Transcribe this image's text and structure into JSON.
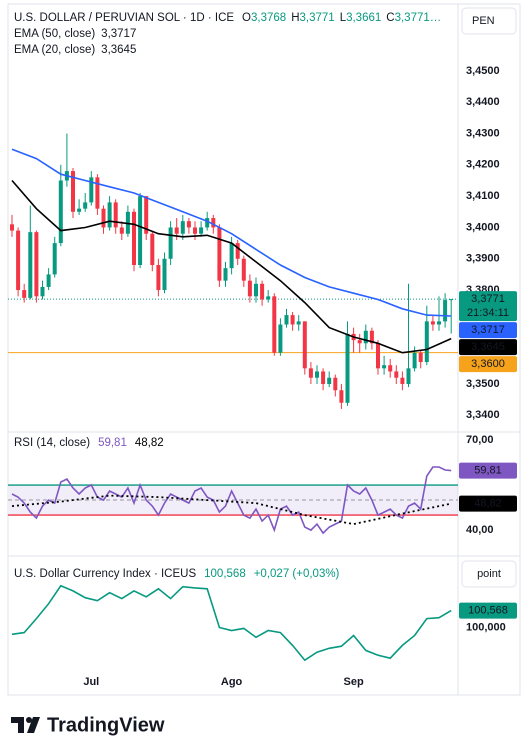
{
  "chart_data": [
    {
      "type": "candlestick",
      "title": "U.S. DOLLAR / PERUVIAN SOL · 1D · ICE",
      "ohlc_legend": [
        {
          "key": "O",
          "text": "3,3768"
        },
        {
          "key": "H",
          "text": "3,3771"
        },
        {
          "key": "L",
          "text": "3,3661"
        },
        {
          "key": "C",
          "text": "3,3771…"
        }
      ],
      "currency": "PEN",
      "up_color": "#089981",
      "down_color": "#f23645",
      "categories": [
        null,
        null,
        null,
        null,
        null,
        null,
        null,
        null,
        null,
        null,
        null,
        null,
        null,
        "Jul",
        null,
        null,
        null,
        null,
        null,
        null,
        null,
        null,
        null,
        null,
        null,
        null,
        null,
        null,
        null,
        null,
        null,
        null,
        null,
        null,
        null,
        null,
        "Ago",
        null,
        null,
        null,
        null,
        null,
        null,
        null,
        null,
        null,
        null,
        null,
        null,
        null,
        null,
        null,
        null,
        null,
        null,
        null,
        "Sep",
        null,
        null,
        null,
        null,
        null,
        null,
        null,
        null,
        null,
        null,
        null,
        null,
        null,
        null,
        null,
        null
      ],
      "open": [
        3.401,
        3.399,
        3.38,
        3.3775,
        3.3985,
        3.378,
        3.381,
        3.385,
        3.395,
        3.415,
        3.418,
        3.405,
        3.406,
        3.408,
        3.416,
        3.406,
        3.4,
        3.408,
        3.4,
        3.398,
        3.405,
        3.388,
        3.41,
        3.398,
        3.388,
        3.38,
        3.39,
        3.4,
        3.398,
        3.402,
        3.4,
        3.398,
        3.4,
        3.403,
        3.4,
        3.383,
        3.387,
        3.395,
        3.39,
        3.383,
        3.378,
        3.382,
        3.377,
        3.378,
        3.36,
        3.369,
        3.372,
        3.369,
        3.37,
        3.355,
        3.352,
        3.354,
        3.35,
        3.352,
        3.348,
        3.344,
        3.366,
        3.364,
        3.363,
        3.367,
        3.363,
        3.355,
        3.356,
        3.354,
        3.352,
        3.35,
        3.355,
        3.36,
        3.357,
        3.37,
        3.369,
        3.37,
        3.3768
      ],
      "high": [
        3.404,
        3.4,
        3.382,
        3.407,
        3.399,
        3.383,
        3.387,
        3.397,
        3.42,
        3.43,
        3.419,
        3.409,
        3.411,
        3.418,
        3.417,
        3.407,
        3.41,
        3.409,
        3.402,
        3.407,
        3.406,
        3.411,
        3.41,
        3.399,
        3.39,
        3.392,
        3.402,
        3.403,
        3.404,
        3.403,
        3.402,
        3.402,
        3.405,
        3.404,
        3.401,
        3.389,
        3.397,
        3.396,
        3.391,
        3.385,
        3.384,
        3.383,
        3.38,
        3.379,
        3.371,
        3.374,
        3.373,
        3.372,
        3.37,
        3.357,
        3.356,
        3.355,
        3.354,
        3.353,
        3.35,
        3.37,
        3.368,
        3.366,
        3.369,
        3.368,
        3.364,
        3.359,
        3.358,
        3.356,
        3.354,
        3.382,
        3.362,
        3.361,
        3.375,
        3.372,
        3.378,
        3.379,
        3.3771
      ],
      "low": [
        3.397,
        3.378,
        3.376,
        3.377,
        3.376,
        3.377,
        3.38,
        3.384,
        3.394,
        3.413,
        3.403,
        3.404,
        3.405,
        3.407,
        3.404,
        3.398,
        3.399,
        3.398,
        3.396,
        3.397,
        3.386,
        3.387,
        3.396,
        3.386,
        3.378,
        3.379,
        3.388,
        3.396,
        3.396,
        3.398,
        3.396,
        3.397,
        3.399,
        3.398,
        3.381,
        3.381,
        3.385,
        3.388,
        3.381,
        3.376,
        3.376,
        3.375,
        3.376,
        3.359,
        3.359,
        3.368,
        3.367,
        3.367,
        3.353,
        3.35,
        3.35,
        3.348,
        3.349,
        3.346,
        3.342,
        3.343,
        3.36,
        3.36,
        3.361,
        3.361,
        3.353,
        3.353,
        3.352,
        3.35,
        3.348,
        3.349,
        3.354,
        3.355,
        3.356,
        3.367,
        3.367,
        3.368,
        3.3661
      ],
      "close": [
        3.399,
        3.38,
        3.3775,
        3.3985,
        3.378,
        3.381,
        3.385,
        3.395,
        3.415,
        3.418,
        3.405,
        3.406,
        3.408,
        3.416,
        3.406,
        3.4,
        3.408,
        3.4,
        3.398,
        3.405,
        3.388,
        3.41,
        3.398,
        3.388,
        3.38,
        3.39,
        3.4,
        3.398,
        3.402,
        3.4,
        3.398,
        3.4,
        3.403,
        3.4,
        3.383,
        3.387,
        3.395,
        3.39,
        3.383,
        3.378,
        3.382,
        3.377,
        3.378,
        3.36,
        3.369,
        3.372,
        3.369,
        3.37,
        3.355,
        3.352,
        3.354,
        3.35,
        3.352,
        3.348,
        3.344,
        3.366,
        3.364,
        3.363,
        3.367,
        3.363,
        3.355,
        3.356,
        3.354,
        3.352,
        3.35,
        3.355,
        3.36,
        3.357,
        3.37,
        3.369,
        3.37,
        3.3768,
        3.3771
      ],
      "series": [
        {
          "name": "EMA (50, close)",
          "color": "#2962ff",
          "last_label": "3,3717",
          "x": [
            0,
            4,
            8,
            12,
            16,
            20,
            24,
            28,
            32,
            36,
            40,
            44,
            48,
            52,
            56,
            60,
            64,
            68,
            72
          ],
          "values": [
            3.425,
            3.422,
            3.417,
            3.415,
            3.413,
            3.411,
            3.408,
            3.405,
            3.402,
            3.398,
            3.393,
            3.388,
            3.384,
            3.381,
            3.379,
            3.377,
            3.374,
            3.372,
            3.3717
          ]
        },
        {
          "name": "EMA (20, close)",
          "color": "#000000",
          "last_label": "3,3645",
          "x": [
            0,
            4,
            8,
            12,
            16,
            20,
            24,
            28,
            32,
            36,
            40,
            44,
            48,
            52,
            56,
            60,
            64,
            68,
            72
          ],
          "values": [
            3.415,
            3.406,
            3.399,
            3.4,
            3.402,
            3.401,
            3.398,
            3.397,
            3.3975,
            3.395,
            3.389,
            3.383,
            3.376,
            3.368,
            3.365,
            3.363,
            3.36,
            3.361,
            3.3645
          ]
        }
      ],
      "last_price": {
        "value": 3.3771,
        "label": "3,3771",
        "countdown": "21:34:11"
      },
      "price_line": {
        "value": 3.36,
        "label": "3,3600",
        "color": "#f7a21b"
      },
      "ylim": [
        3.3353,
        3.4701
      ],
      "yticks": [
        {
          "value": 3.45,
          "label": "3,4500"
        },
        {
          "value": 3.44,
          "label": "3,4400"
        },
        {
          "value": 3.43,
          "label": "3,4300"
        },
        {
          "value": 3.42,
          "label": "3,4200"
        },
        {
          "value": 3.41,
          "label": "3,4100"
        },
        {
          "value": 3.4,
          "label": "3,4000"
        },
        {
          "value": 3.39,
          "label": "3,3900"
        },
        {
          "value": 3.38,
          "label": "3,3800"
        },
        {
          "value": 3.35,
          "label": "3,3500"
        },
        {
          "value": 3.34,
          "label": "3,3400"
        }
      ]
    },
    {
      "type": "line",
      "title": "RSI (14, close)",
      "series": [
        {
          "color": "#7e57c2",
          "last_label": "59,81",
          "values": [
            52,
            51,
            49,
            46,
            44,
            48,
            50,
            49,
            56,
            57,
            54,
            52,
            54,
            55,
            51,
            50,
            53,
            52,
            51,
            54,
            49,
            55,
            50,
            48,
            45,
            49,
            52,
            51,
            50,
            49,
            53,
            54,
            51,
            50,
            46,
            48,
            53,
            49,
            45,
            44,
            47,
            43,
            45,
            40,
            47,
            48,
            45,
            46,
            41,
            40,
            42,
            39,
            41,
            42,
            43,
            55,
            53,
            52,
            54,
            50,
            45,
            46,
            47,
            45,
            44,
            48,
            49,
            47,
            58,
            61,
            61,
            60,
            59.81
          ]
        },
        {
          "color": "#000000",
          "last_label": "48,82",
          "dashed": true,
          "x": [
            0,
            8,
            16,
            24,
            32,
            40,
            48,
            56,
            64,
            72
          ],
          "values": [
            48,
            49.5,
            51.5,
            51,
            50,
            49,
            45,
            42,
            45.5,
            48.82
          ]
        }
      ],
      "bands": [
        {
          "value": 55,
          "color": "#089981"
        },
        {
          "value": 45,
          "color": "#f23645"
        }
      ],
      "midline": 50,
      "ylim": [
        31.7,
        72
      ],
      "yticks": [
        {
          "value": 70,
          "label": "70,00"
        },
        {
          "value": 40,
          "label": "40,00"
        }
      ]
    },
    {
      "type": "line",
      "title": "U.S. Dollar Currency Index · ICEUS",
      "change_label": "+0,027 (+0,03%)",
      "unit_button": "point",
      "series": [
        {
          "color": "#089981",
          "last_label": "100,568",
          "x": [
            0,
            2,
            4,
            6,
            8,
            10,
            12,
            14,
            16,
            18,
            20,
            22,
            24,
            26,
            28,
            30,
            32,
            34,
            36,
            38,
            40,
            42,
            44,
            46,
            48,
            50,
            52,
            54,
            56,
            58,
            60,
            62,
            64,
            66,
            68,
            70,
            72
          ],
          "values": [
            99.77,
            99.83,
            100.3,
            100.8,
            101.4,
            101.23,
            101.0,
            100.9,
            101.17,
            100.97,
            101.23,
            101.03,
            101.3,
            100.97,
            101.37,
            101.33,
            101.3,
            100.0,
            99.9,
            99.97,
            99.67,
            99.9,
            99.83,
            99.4,
            98.9,
            99.17,
            99.3,
            99.37,
            99.73,
            99.23,
            99.07,
            98.97,
            99.4,
            99.73,
            100.3,
            100.33,
            100.568
          ]
        }
      ],
      "ylim": [
        97.9,
        102.1
      ],
      "yticks": [
        {
          "value": 100,
          "label": "100,000"
        }
      ]
    }
  ],
  "branding": "TradingView"
}
